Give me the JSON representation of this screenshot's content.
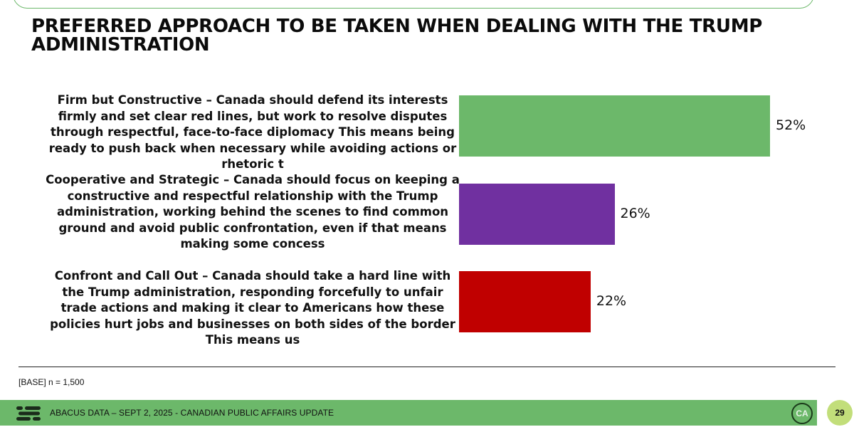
{
  "title": "PREFERRED APPROACH TO BE TAKEN WHEN DEALING WITH THE TRUMP ADMINISTRATION",
  "chart_data": {
    "type": "bar",
    "orientation": "horizontal",
    "categories": [
      "Firm but Constructive – Canada should defend its interests firmly and set clear red lines, but work to resolve disputes through respectful, face-to-face diplomacy  This means being ready to push back when necessary while avoiding actions or rhetoric t",
      "Cooperative and Strategic – Canada should focus on keeping a constructive and respectful relationship with the Trump administration, working behind the scenes to find common ground and avoid public confrontation, even if that means making some concess",
      "Confront and Call Out – Canada should take a hard line with the Trump administration, responding forcefully to unfair trade actions and making it clear to Americans how these policies hurt jobs and businesses on both sides of the border  This means us"
    ],
    "values": [
      52,
      26,
      22
    ],
    "value_labels": [
      "52%",
      "26%",
      "22%"
    ],
    "colors": [
      "#6cb86a",
      "#7030a0",
      "#c00000"
    ],
    "unit": "%",
    "grid": false,
    "legend": "none"
  },
  "base_note": "[BASE] n = 1,500",
  "footer": {
    "text": "ABACUS DATA – SEPT 2, 2025 - CANADIAN PUBLIC AFFAIRS UPDATE",
    "badge": "CA",
    "page_number": "29",
    "color": "#6cb86a"
  }
}
